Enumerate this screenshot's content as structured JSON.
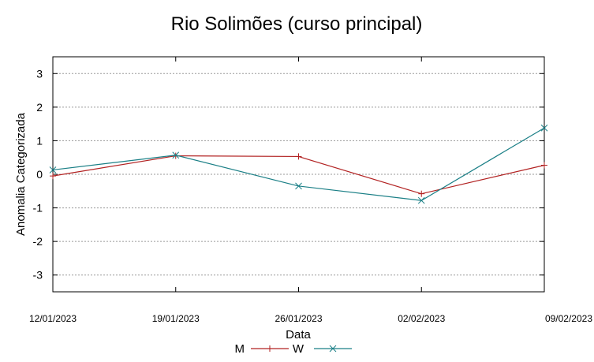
{
  "chart_data": {
    "type": "line",
    "title": "Rio Solimões (curso principal)",
    "xlabel": "Data",
    "ylabel": "Anomalia Categorizada",
    "categories": [
      "12/01/2023",
      "19/01/2023",
      "26/01/2023",
      "02/02/2023",
      "09/02/2023"
    ],
    "yticks": [
      "3",
      "2",
      "1",
      "0",
      "-1",
      "-2",
      "-3"
    ],
    "ytick_values": [
      3,
      2,
      1,
      0,
      -1,
      -2,
      -3
    ],
    "ylim": [
      -3.5,
      3.5
    ],
    "grid": true,
    "legend_position": "bottom-center",
    "series": [
      {
        "name": "M",
        "values": [
          -0.05,
          0.55,
          0.53,
          -0.58,
          0.27
        ],
        "color": "#b22222",
        "marker": "plus"
      },
      {
        "name": "W",
        "values": [
          0.13,
          0.57,
          -0.35,
          -0.78,
          1.38
        ],
        "color": "#1a7f86",
        "marker": "cross"
      }
    ]
  }
}
